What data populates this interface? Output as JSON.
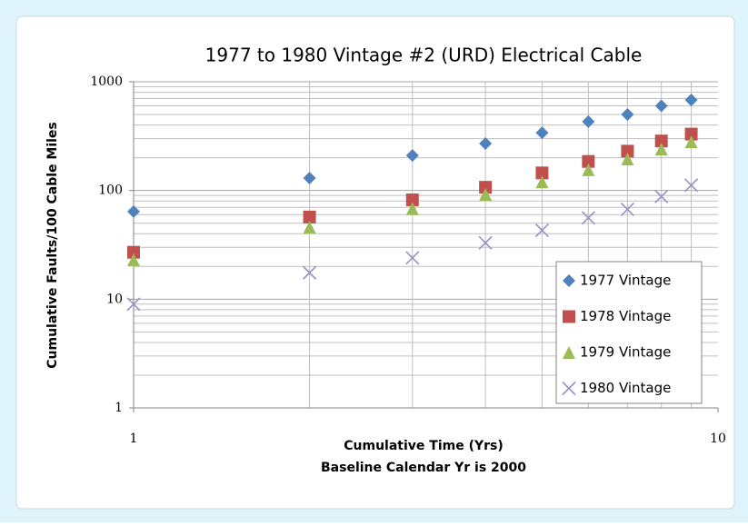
{
  "chart_data": {
    "type": "scatter",
    "title": "1977 to 1980 Vintage #2 (URD) Electrical Cable",
    "xlabel": "Cumulative Time (Yrs)",
    "xlabel_note": "Baseline Calendar Yr is 2000",
    "ylabel": "Cumulative Faults/100 Cable Miles",
    "x": [
      1,
      2,
      3,
      4,
      5,
      6,
      7,
      8,
      9
    ],
    "series": [
      {
        "name": "1977 Vintage",
        "color": "#4f81bd",
        "marker": "diamond",
        "values": [
          64,
          130,
          210,
          270,
          340,
          430,
          500,
          600,
          680
        ]
      },
      {
        "name": "1978 Vintage",
        "color": "#c0504d",
        "marker": "square",
        "values": [
          27,
          57,
          82,
          107,
          145,
          185,
          230,
          285,
          330
        ]
      },
      {
        "name": "1979 Vintage",
        "color": "#9bbb59",
        "marker": "triangle",
        "values": [
          23,
          46,
          68,
          92,
          120,
          155,
          195,
          240,
          280
        ]
      },
      {
        "name": "1980 Vintage",
        "color": "#9b8fc4",
        "marker": "x",
        "values": [
          9,
          17.5,
          24,
          33,
          43,
          56,
          67,
          88,
          112
        ]
      }
    ],
    "xscale": "log",
    "yscale": "log",
    "xlim": [
      1,
      10
    ],
    "ylim": [
      1,
      1000
    ],
    "xticks": [
      1,
      10
    ],
    "yticks": [
      1,
      10,
      100,
      1000
    ],
    "grid": true,
    "legend": "lower right"
  }
}
